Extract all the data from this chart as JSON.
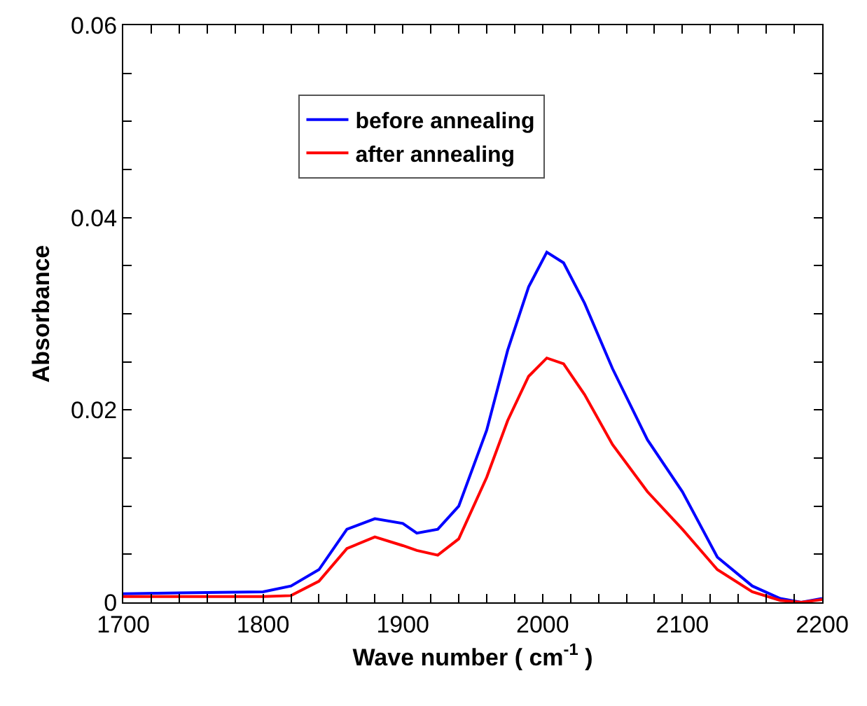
{
  "chart_data": {
    "type": "line",
    "xlabel": "Wave number ( cm$^{-1}$ )",
    "ylabel": "Absorbance",
    "xlim": [
      1700,
      2200
    ],
    "ylim": [
      0,
      0.06
    ],
    "xticks": [
      1700,
      {
        "value": 1720,
        "label": null
      },
      {
        "value": 1740,
        "label": null
      },
      {
        "value": 1760,
        "label": null
      },
      {
        "value": 1780,
        "label": null
      },
      1800,
      {
        "value": 1820,
        "label": null
      },
      {
        "value": 1840,
        "label": null
      },
      {
        "value": 1860,
        "label": null
      },
      {
        "value": 1880,
        "label": null
      },
      1900,
      {
        "value": 1920,
        "label": null
      },
      {
        "value": 1940,
        "label": null
      },
      {
        "value": 1960,
        "label": null
      },
      {
        "value": 1980,
        "label": null
      },
      2000,
      {
        "value": 2020,
        "label": null
      },
      {
        "value": 2040,
        "label": null
      },
      {
        "value": 2060,
        "label": null
      },
      {
        "value": 2080,
        "label": null
      },
      2100,
      {
        "value": 2120,
        "label": null
      },
      {
        "value": 2140,
        "label": null
      },
      {
        "value": 2160,
        "label": null
      },
      {
        "value": 2180,
        "label": null
      },
      2200
    ],
    "yticks": [
      0,
      {
        "value": 0.005,
        "label": null
      },
      {
        "value": 0.01,
        "label": null
      },
      {
        "value": 0.015,
        "label": null
      },
      0.02,
      {
        "value": 0.025,
        "label": null
      },
      {
        "value": 0.03,
        "label": null
      },
      {
        "value": 0.035,
        "label": null
      },
      0.04,
      {
        "value": 0.045,
        "label": null
      },
      {
        "value": 0.05,
        "label": null
      },
      {
        "value": 0.055,
        "label": null
      },
      0.06
    ],
    "x": [
      1700,
      1800,
      1820,
      1840,
      1860,
      1880,
      1900,
      1910,
      1925,
      1940,
      1960,
      1975,
      1990,
      2003,
      2015,
      2030,
      2050,
      2075,
      2100,
      2125,
      2150,
      2170,
      2185,
      2200
    ],
    "series": [
      {
        "name": "before annealing",
        "color": "#0000ff",
        "values": [
          0.0009,
          0.0011,
          0.0017,
          0.0034,
          0.0076,
          0.0087,
          0.0082,
          0.0072,
          0.0076,
          0.01,
          0.0179,
          0.0262,
          0.0328,
          0.0364,
          0.0353,
          0.0311,
          0.0243,
          0.0169,
          0.0115,
          0.0047,
          0.0017,
          0.0004,
          0,
          0.0004
        ]
      },
      {
        "name": "after annealing",
        "color": "#ff0000",
        "values": [
          0.0006,
          0.0006,
          0.0007,
          0.0022,
          0.0056,
          0.0068,
          0.0059,
          0.0054,
          0.0049,
          0.0066,
          0.013,
          0.0189,
          0.0235,
          0.0254,
          0.0248,
          0.0216,
          0.0164,
          0.0115,
          0.0076,
          0.0034,
          0.0011,
          0.0002,
          0,
          0.0003
        ]
      }
    ],
    "legend": "top",
    "grid": false,
    "marker": "none",
    "line_style": "solid"
  }
}
